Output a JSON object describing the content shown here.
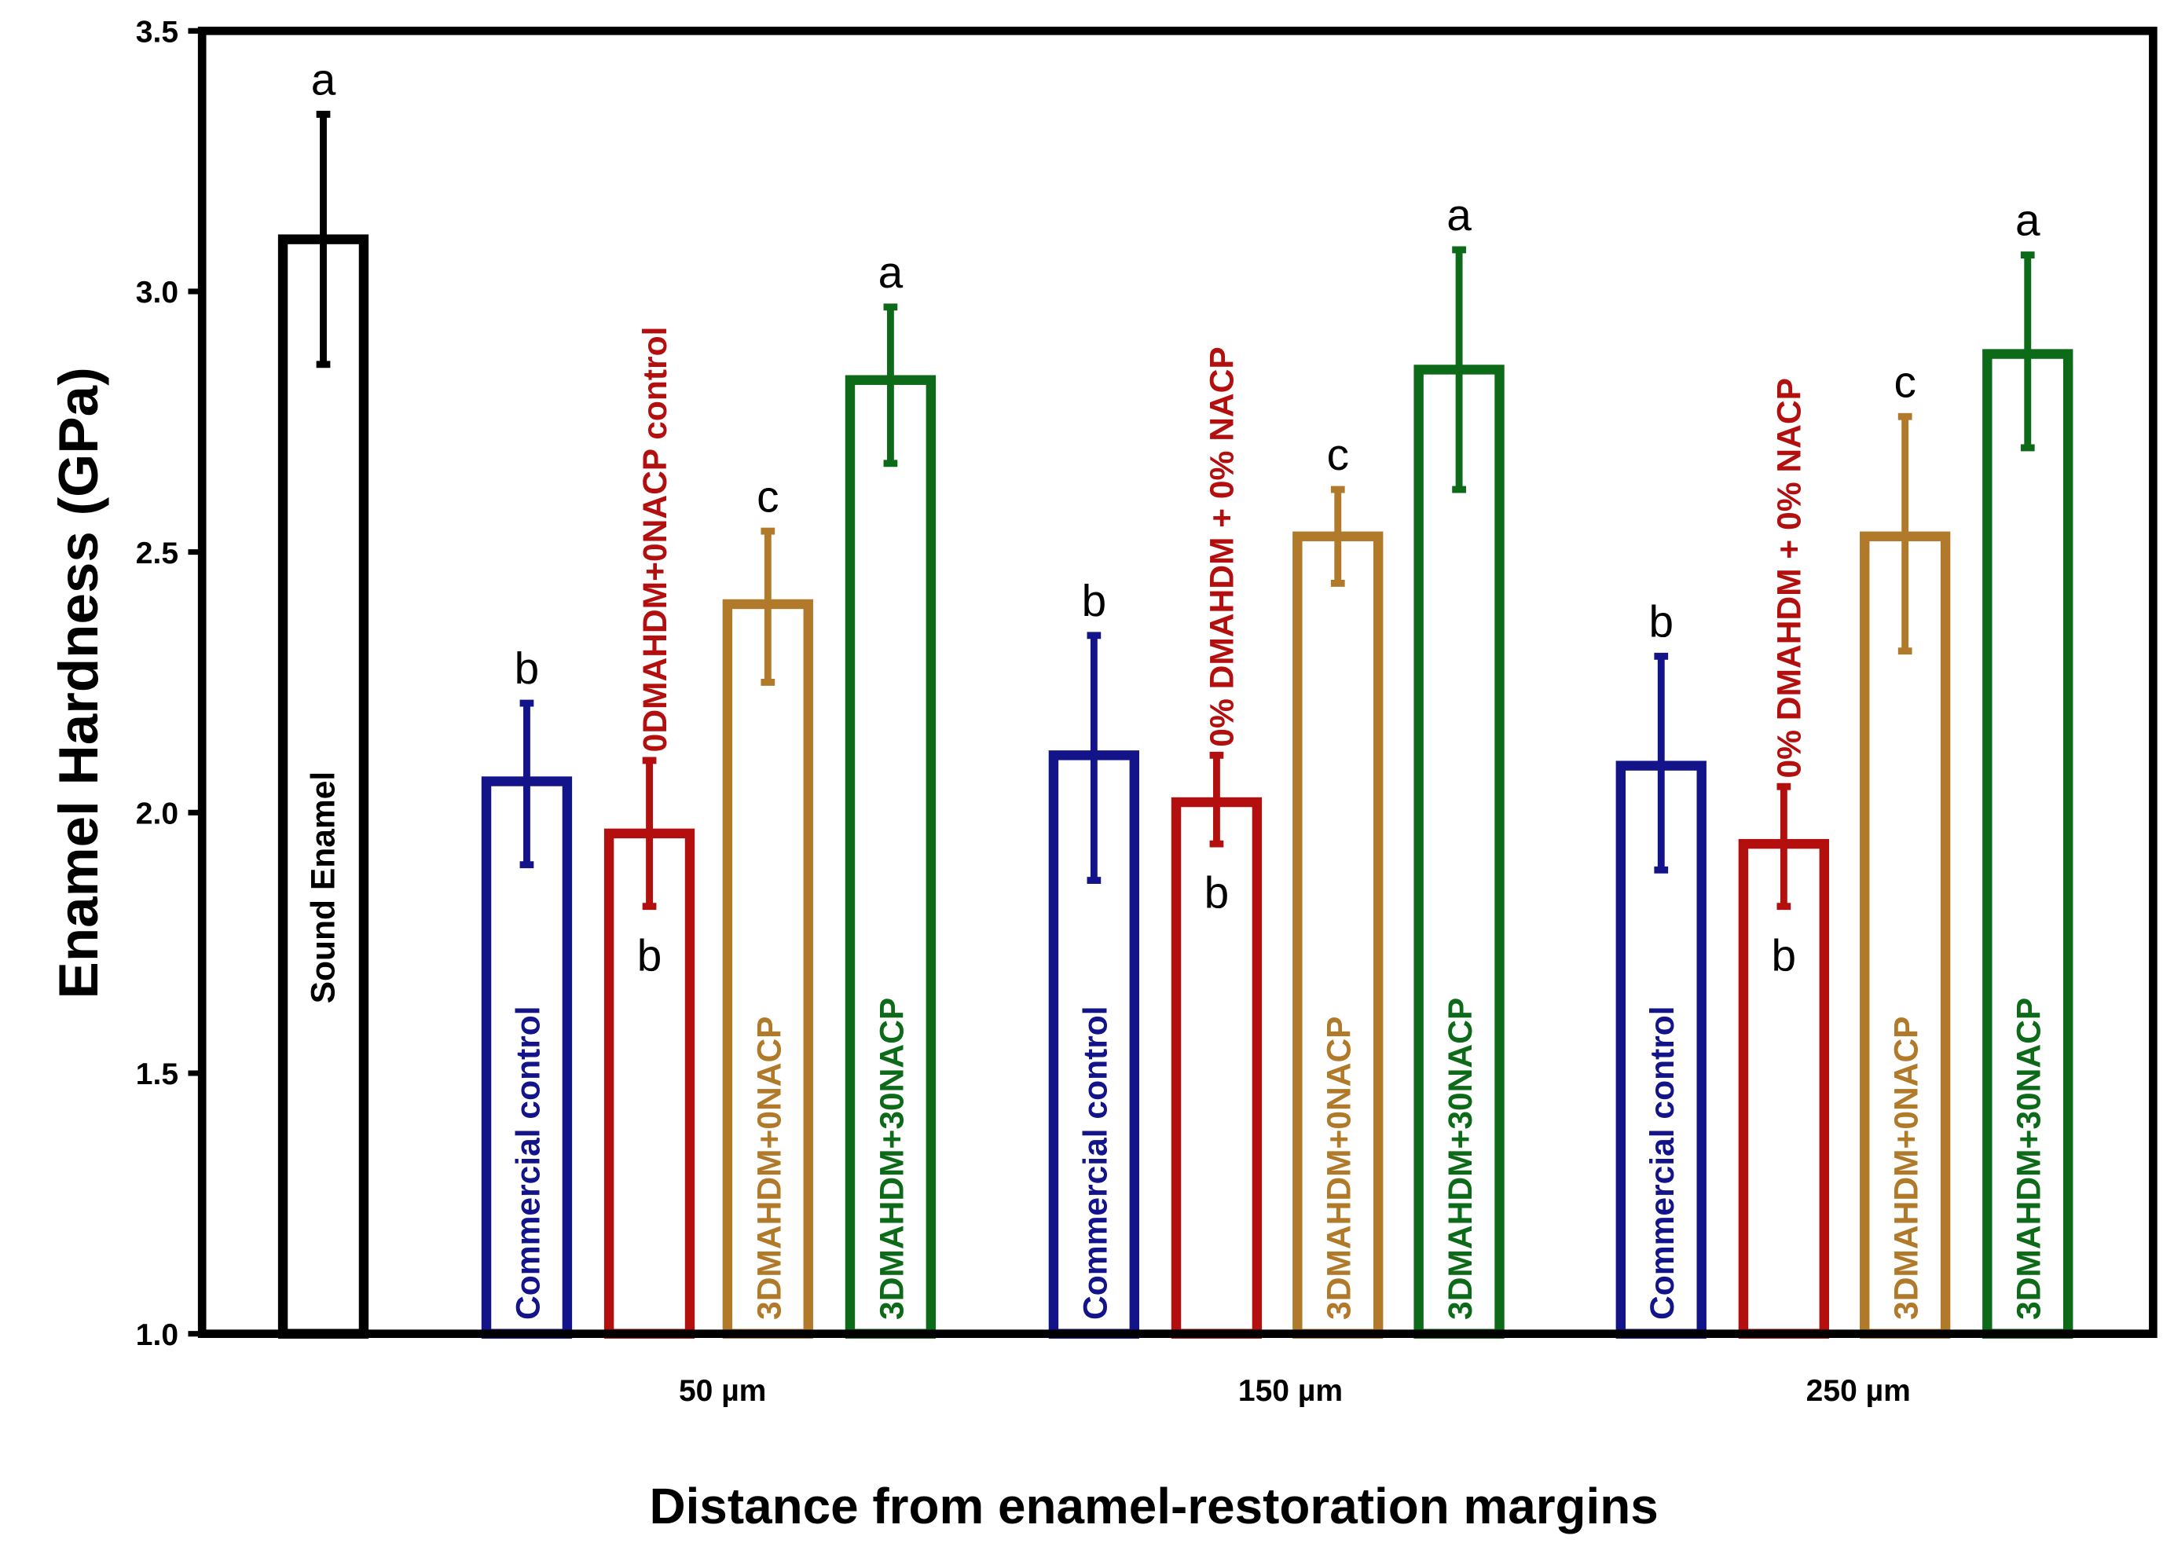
{
  "chart_data": {
    "type": "bar",
    "title": "",
    "xlabel": "Distance from enamel-restoration margins",
    "ylabel": "Enamel  Hardness (GPa)",
    "ylim": [
      1.0,
      3.5
    ],
    "yticks": [
      "1.0",
      "1.5",
      "2.0",
      "2.5",
      "3.0",
      "3.5"
    ],
    "grid": false,
    "legend": "none (labels inside bars)",
    "groups": [
      {
        "category": "",
        "bars": [
          {
            "label": "Sound Enamel",
            "value": 3.1,
            "err_low": 2.86,
            "err_high": 3.34,
            "letter": "a",
            "color": "#000000"
          }
        ]
      },
      {
        "category": "50 µm",
        "bars": [
          {
            "label": "Commercial control",
            "value": 2.06,
            "err_low": 1.9,
            "err_high": 2.21,
            "letter": "b",
            "color": "#14148a"
          },
          {
            "label": "0DMAHDM+0NACP control",
            "value": 1.96,
            "err_low": 1.82,
            "err_high": 2.1,
            "letter": "b",
            "color": "#b30f0f"
          },
          {
            "label": "3DMAHDM+0NACP",
            "value": 2.4,
            "err_low": 2.25,
            "err_high": 2.54,
            "letter": "c",
            "color": "#b07a2a"
          },
          {
            "label": "3DMAHDM+30NACP",
            "value": 2.83,
            "err_low": 2.67,
            "err_high": 2.97,
            "letter": "a",
            "color": "#0c6a18"
          }
        ]
      },
      {
        "category": "150 µm",
        "bars": [
          {
            "label": "Commercial control",
            "value": 2.11,
            "err_low": 1.87,
            "err_high": 2.34,
            "letter": "b",
            "color": "#14148a"
          },
          {
            "label": "0% DMAHDM + 0% NACP",
            "value": 2.02,
            "err_low": 1.94,
            "err_high": 2.11,
            "letter": "b",
            "color": "#b30f0f"
          },
          {
            "label": "3DMAHDM+0NACP",
            "value": 2.53,
            "err_low": 2.44,
            "err_high": 2.62,
            "letter": "c",
            "color": "#b07a2a"
          },
          {
            "label": "3DMAHDM+30NACP",
            "value": 2.85,
            "err_low": 2.62,
            "err_high": 3.08,
            "letter": "a",
            "color": "#0c6a18"
          }
        ]
      },
      {
        "category": "250 µm",
        "bars": [
          {
            "label": "Commercial control",
            "value": 2.09,
            "err_low": 1.89,
            "err_high": 2.3,
            "letter": "b",
            "color": "#14148a"
          },
          {
            "label": "0% DMAHDM + 0% NACP",
            "value": 1.94,
            "err_low": 1.82,
            "err_high": 2.05,
            "letter": "b",
            "color": "#b30f0f"
          },
          {
            "label": "3DMAHDM+0NACP",
            "value": 2.53,
            "err_low": 2.31,
            "err_high": 2.76,
            "letter": "c",
            "color": "#b07a2a"
          },
          {
            "label": "3DMAHDM+30NACP",
            "value": 2.88,
            "err_low": 2.7,
            "err_high": 3.07,
            "letter": "a",
            "color": "#0c6a18"
          }
        ]
      }
    ]
  }
}
